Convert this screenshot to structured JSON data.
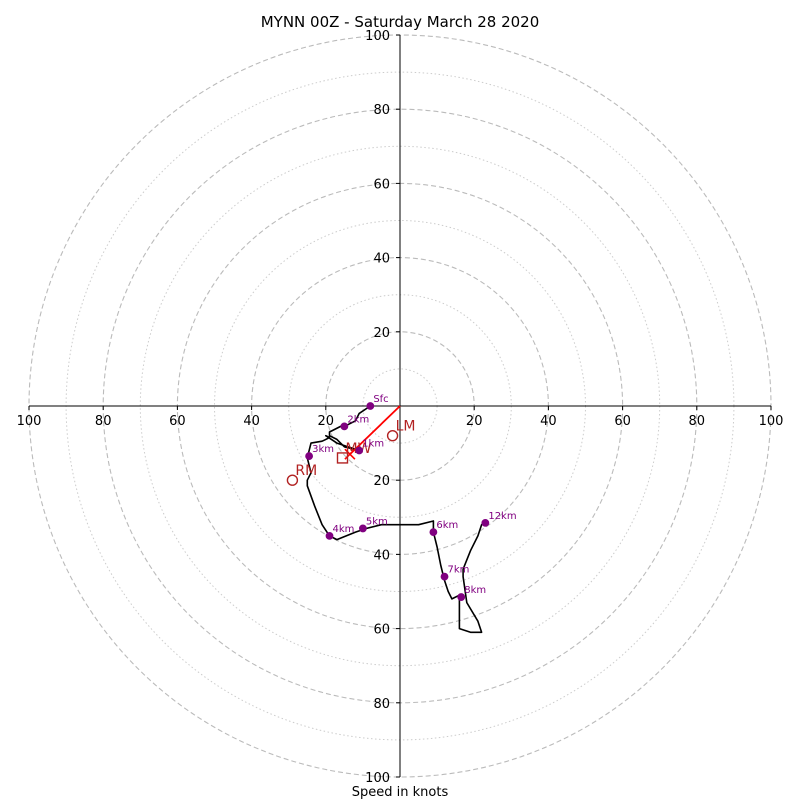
{
  "chart_data": {
    "type": "hodograph",
    "title": "MYNN 00Z - Saturday March 28 2020",
    "xlabel": "Speed in knots",
    "ring_max": 100,
    "rings_major": [
      20,
      40,
      60,
      80,
      100
    ],
    "rings_minor": [
      10,
      30,
      50,
      70,
      90
    ],
    "x_ticks": [
      "100",
      "80",
      "60",
      "40",
      "20",
      "20",
      "40",
      "60",
      "80",
      "100"
    ],
    "x_tick_values": [
      -100,
      -80,
      -60,
      -40,
      -20,
      20,
      40,
      60,
      80,
      100
    ],
    "y_ticks": [
      "100",
      "80",
      "60",
      "40",
      "20",
      "20",
      "40",
      "60",
      "80",
      "100"
    ],
    "y_tick_values": [
      100,
      80,
      60,
      40,
      20,
      -20,
      -40,
      -60,
      -80,
      -100
    ],
    "hodograph_trace": [
      [
        -8,
        0
      ],
      [
        -11,
        -2
      ],
      [
        -12,
        -4
      ],
      [
        -14,
        -5
      ],
      [
        -16,
        -5.5
      ],
      [
        -19,
        -7
      ],
      [
        -19,
        -8
      ],
      [
        -17,
        -9
      ],
      [
        -15,
        -11
      ],
      [
        -11,
        -12
      ],
      [
        -17,
        -10
      ],
      [
        -20,
        -8
      ],
      [
        -19,
        -8.5
      ],
      [
        -20,
        -9
      ],
      [
        -21,
        -9.5
      ],
      [
        -24,
        -10
      ],
      [
        -25,
        -14
      ],
      [
        -24,
        -18
      ],
      [
        -25,
        -20
      ],
      [
        -25,
        -21.5
      ],
      [
        -23,
        -27
      ],
      [
        -21,
        -32
      ],
      [
        -19,
        -35
      ],
      [
        -17,
        -36
      ],
      [
        -12,
        -34
      ],
      [
        -9,
        -33
      ],
      [
        -5,
        -32
      ],
      [
        0,
        -32
      ],
      [
        5,
        -32
      ],
      [
        9,
        -31
      ],
      [
        9,
        -34
      ],
      [
        10,
        -38
      ],
      [
        11,
        -43
      ],
      [
        12,
        -47
      ],
      [
        13,
        -50
      ],
      [
        14,
        -52
      ],
      [
        16,
        -51
      ],
      [
        16,
        -60
      ],
      [
        19,
        -61
      ],
      [
        22,
        -61
      ],
      [
        21,
        -58
      ],
      [
        18,
        -53
      ],
      [
        17,
        -46
      ],
      [
        17,
        -44
      ],
      [
        19,
        -39
      ],
      [
        21,
        -35
      ],
      [
        22,
        -32
      ],
      [
        23,
        -31
      ]
    ],
    "height_points": [
      {
        "label": "Sfc",
        "u": -8,
        "v": 0
      },
      {
        "label": "1km",
        "u": -11,
        "v": -12
      },
      {
        "label": "2km",
        "u": -15,
        "v": -5.5
      },
      {
        "label": "3km",
        "u": -24.5,
        "v": -13.5
      },
      {
        "label": "4km",
        "u": -19,
        "v": -35
      },
      {
        "label": "5km",
        "u": -10,
        "v": -33
      },
      {
        "label": "6km",
        "u": 9,
        "v": -34
      },
      {
        "label": "7km",
        "u": 12,
        "v": -46
      },
      {
        "label": "8km",
        "u": 16.5,
        "v": -51.5
      },
      {
        "label": "12km",
        "u": 23,
        "v": -31.5
      }
    ],
    "storm_motion": [
      {
        "label": "LM",
        "u": -2,
        "v": -8,
        "marker": "circle"
      },
      {
        "label": "RM",
        "u": -29,
        "v": -20,
        "marker": "circle"
      },
      {
        "label": "MW",
        "u": -15.5,
        "v": -14,
        "marker": "square"
      }
    ],
    "shear_vector": {
      "from": [
        0,
        0
      ],
      "to": [
        -13.5,
        -13
      ]
    },
    "colors": {
      "trace": "#000000",
      "points": "#800080",
      "markers": "#b22222",
      "shear": "#ff0000",
      "grid": "#bbbbbb"
    }
  }
}
